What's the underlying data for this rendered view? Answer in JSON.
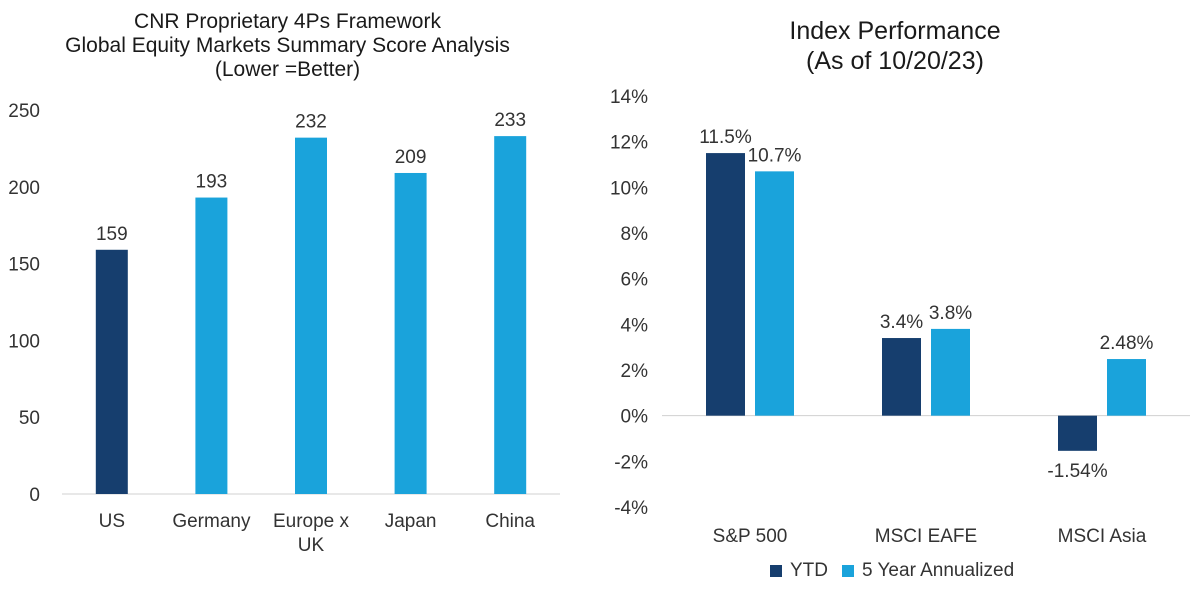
{
  "chart_data": [
    {
      "type": "bar",
      "title": [
        "CNR Proprietary 4Ps Framework",
        "Global Equity Markets Summary Score Analysis",
        "(Lower =Better)"
      ],
      "categories": [
        [
          "US"
        ],
        [
          "Germany"
        ],
        [
          "Europe x",
          "UK"
        ],
        [
          "Japan"
        ],
        [
          "China"
        ]
      ],
      "values": [
        159,
        193,
        232,
        209,
        233
      ],
      "data_labels": [
        "159",
        "193",
        "232",
        "209",
        "233"
      ],
      "colors": [
        "#163E6E",
        "#1AA3DB",
        "#1AA3DB",
        "#1AA3DB",
        "#1AA3DB"
      ],
      "ylim": [
        0,
        250
      ],
      "yticks": [
        0,
        50,
        100,
        150,
        200,
        250
      ],
      "ytick_labels": [
        "0",
        "50",
        "100",
        "150",
        "200",
        "250"
      ],
      "grid": false
    },
    {
      "type": "bar",
      "title": [
        "Index Performance",
        "(As of 10/20/23)"
      ],
      "categories": [
        "S&P 500",
        "MSCI EAFE",
        "MSCI Asia"
      ],
      "series": [
        {
          "name": "YTD",
          "color": "#163E6E",
          "values": [
            11.5,
            3.4,
            -1.54
          ],
          "labels": [
            "11.5%",
            "3.4%",
            "-1.54%"
          ]
        },
        {
          "name": "5 Year Annualized",
          "color": "#1AA3DB",
          "values": [
            10.7,
            3.8,
            2.48
          ],
          "labels": [
            "10.7%",
            "3.8%",
            "2.48%"
          ]
        }
      ],
      "ylim": [
        -4,
        14
      ],
      "yticks": [
        -4,
        -2,
        0,
        2,
        4,
        6,
        8,
        10,
        12,
        14
      ],
      "ytick_labels": [
        "-4%",
        "-2%",
        "0%",
        "2%",
        "4%",
        "6%",
        "8%",
        "10%",
        "12%",
        "14%"
      ],
      "legend_position": "bottom",
      "grid": false
    }
  ]
}
